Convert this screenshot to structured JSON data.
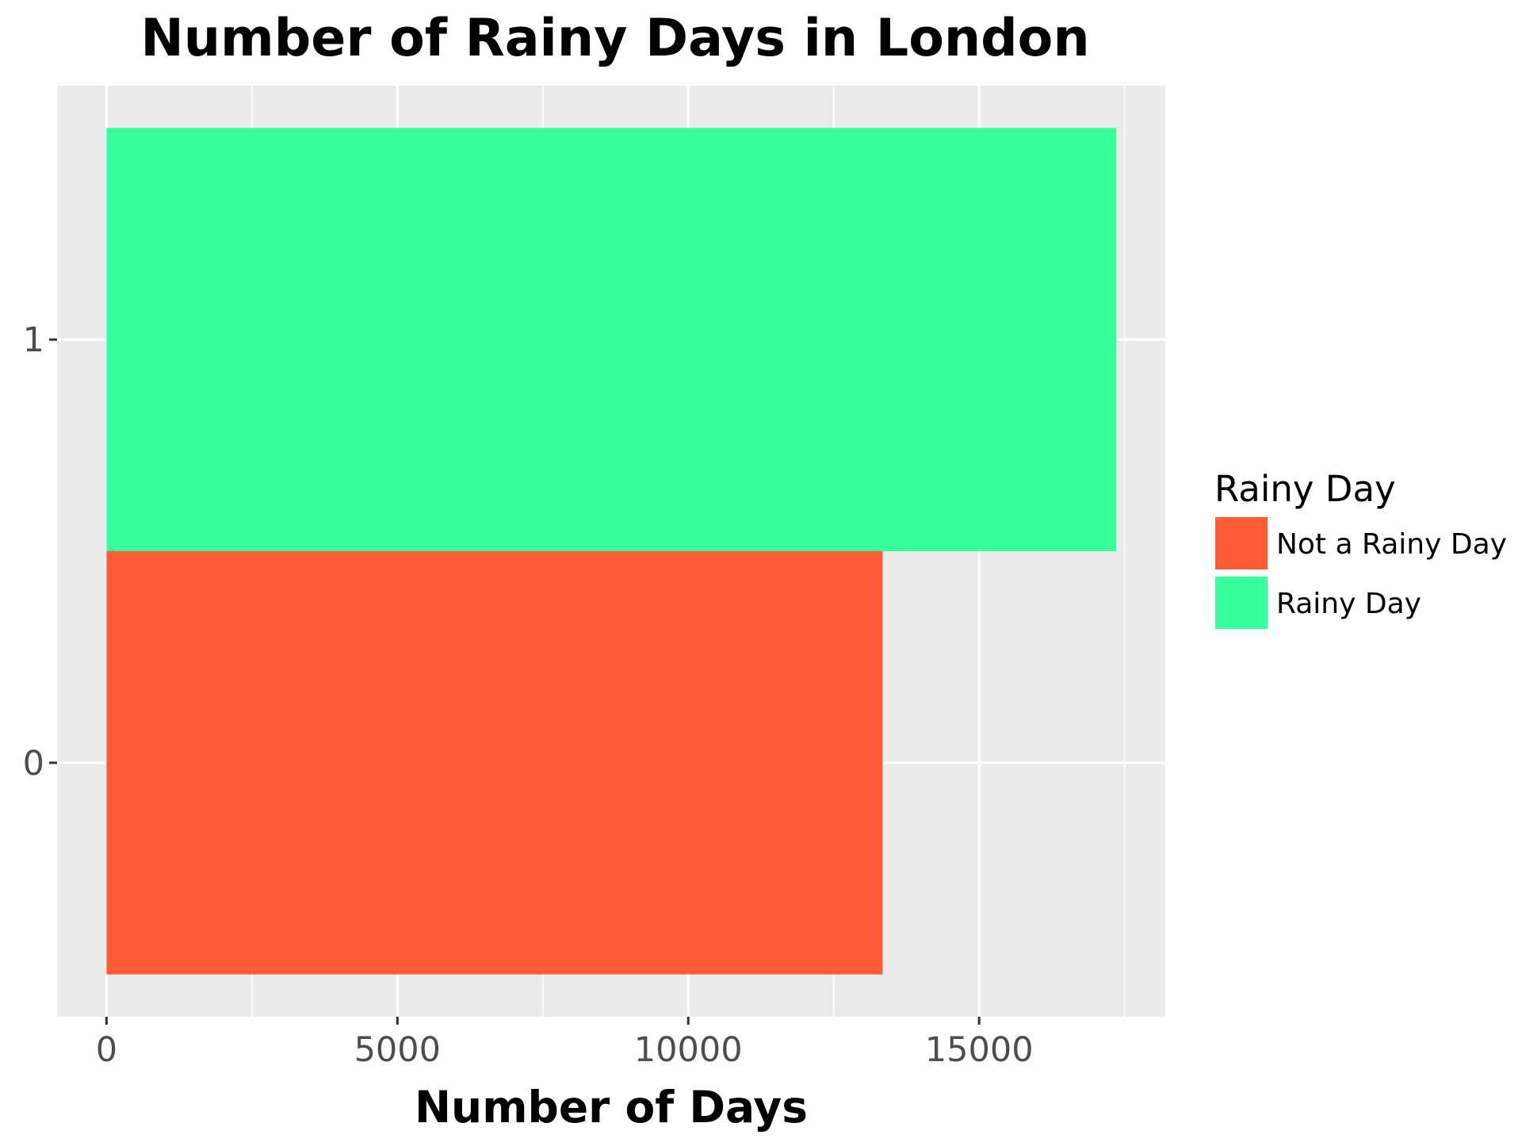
{
  "chart_data": {
    "type": "bar",
    "orientation": "horizontal",
    "title": "Number of Rainy Days in London",
    "xlabel": "Number of Days",
    "ylabel": "",
    "categories": [
      "0",
      "1"
    ],
    "values": [
      13340,
      17360
    ],
    "bar_fill_labels": [
      "Not a Rainy Day",
      "Rainy Day"
    ],
    "xlim": [
      -850,
      18200
    ],
    "ylim": [
      -0.6,
      1.6
    ],
    "x_ticks": [
      0,
      5000,
      10000,
      15000
    ],
    "x_tick_labels": [
      "0",
      "5000",
      "10000",
      "15000"
    ],
    "x_minor_ticks": [
      2500,
      7500,
      12500,
      17500
    ],
    "y_ticks": [
      0,
      1
    ],
    "y_tick_labels": [
      "0",
      "1"
    ],
    "bar_width": 1.0,
    "grid": true,
    "panel_background": "#ebebeb",
    "grid_color": "#ffffff",
    "legend": {
      "title": "Rainy Day",
      "position": "right",
      "entries": [
        {
          "label": "Not a Rainy Day",
          "color": "#ff5a36"
        },
        {
          "label": "Rainy Day",
          "color": "#36ff9b"
        }
      ]
    },
    "colors": {
      "Not a Rainy Day": "#ff5a36",
      "Rainy Day": "#36ff9b"
    }
  }
}
